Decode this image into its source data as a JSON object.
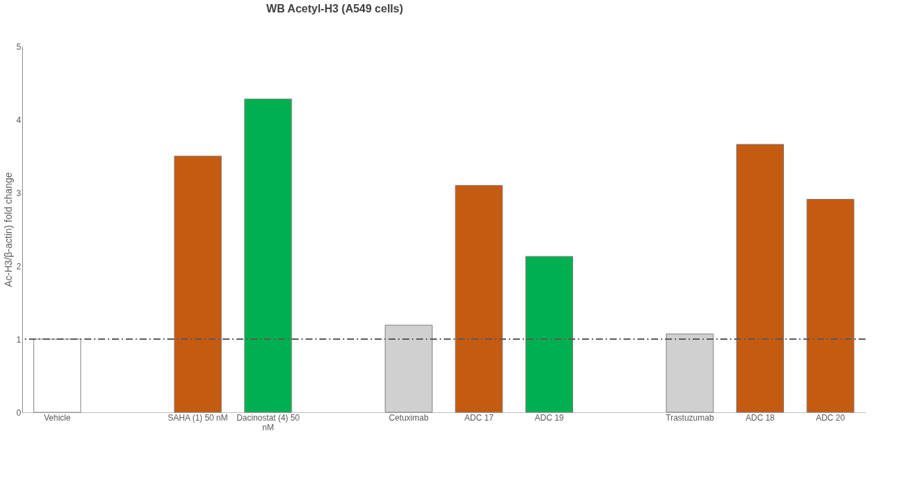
{
  "chart_data": {
    "type": "bar",
    "title": "WB Acetyl-H3 (A549 cells)",
    "ylabel": "Ac-H3/β-actin) fold change",
    "categories": [
      "Vehicle",
      null,
      "SAHA (1) 50 nM",
      "Dacinostat (4) 50 nM",
      null,
      "Cetuximab",
      "ADC 17",
      "ADC 19",
      null,
      "Trastuzumab",
      "ADC 18",
      "ADC 20"
    ],
    "values": [
      1.0,
      null,
      3.5,
      4.28,
      null,
      1.19,
      3.1,
      2.13,
      null,
      1.07,
      3.66,
      2.91
    ],
    "colors": [
      "#ffffff",
      null,
      "#c55a11",
      "#00b050",
      null,
      "#d0d0d0",
      "#c55a11",
      "#00b050",
      null,
      "#d0d0d0",
      "#c55a11",
      "#c55a11"
    ],
    "ylim": [
      0,
      5
    ],
    "yticks": [
      0,
      1,
      2,
      3,
      4,
      5
    ],
    "grid": false,
    "ref_lines": [
      {
        "axis": "y",
        "value": 1,
        "color": "#595959",
        "line_style": "dashdot"
      }
    ]
  }
}
